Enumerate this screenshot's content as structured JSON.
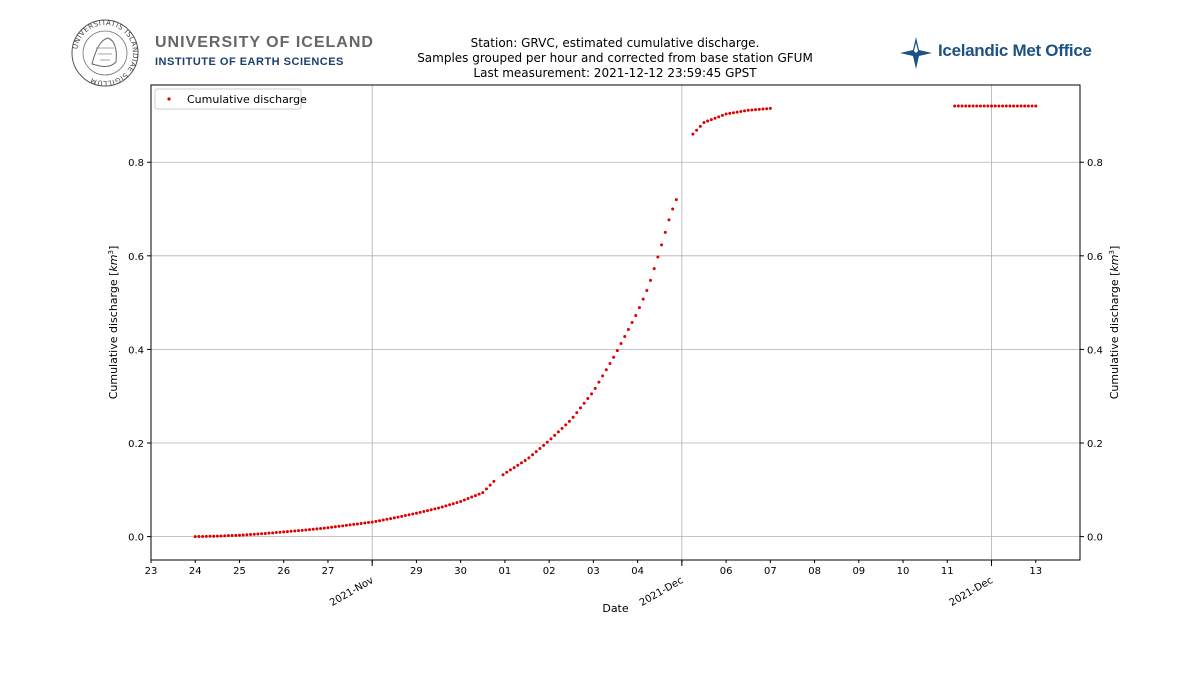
{
  "header": {
    "university_name": "UNIVERSITY OF ICELAND",
    "institute_name": "INSTITUTE OF EARTH SCIENCES",
    "met_office_name": "Icelandic Met Office",
    "seal_text": "UNIVERSITATIS ISLANDIAE SIGILLUM"
  },
  "chart_data": {
    "type": "scatter",
    "title_lines": [
      "Station: GRVC, estimated cumulative discharge.",
      "Samples grouped per hour and corrected from base station GFUM",
      "Last measurement: 2021-12-12 23:59:45 GPST"
    ],
    "xlabel": "Date",
    "ylabel": "Cumulative discharge [km³]",
    "ylabel_parts": {
      "text": "Cumulative discharge [",
      "unit": "km",
      "sup": "3",
      "close": "]"
    },
    "x_axis_type": "date",
    "xlim": [
      "2021-11-23",
      "2021-12-14"
    ],
    "ylim": [
      -0.05,
      0.965
    ],
    "x_ticks": [
      {
        "date": "2021-11-23",
        "label": "23"
      },
      {
        "date": "2021-11-24",
        "label": "24"
      },
      {
        "date": "2021-11-25",
        "label": "25"
      },
      {
        "date": "2021-11-26",
        "label": "26"
      },
      {
        "date": "2021-11-27",
        "label": "27"
      },
      {
        "date": "2021-11-28",
        "label": ""
      },
      {
        "date": "2021-11-29",
        "label": "29"
      },
      {
        "date": "2021-11-30",
        "label": "30"
      },
      {
        "date": "2021-12-01",
        "label": "01"
      },
      {
        "date": "2021-12-02",
        "label": "02"
      },
      {
        "date": "2021-12-03",
        "label": "03"
      },
      {
        "date": "2021-12-04",
        "label": "04"
      },
      {
        "date": "2021-12-05",
        "label": ""
      },
      {
        "date": "2021-12-06",
        "label": "06"
      },
      {
        "date": "2021-12-07",
        "label": "07"
      },
      {
        "date": "2021-12-08",
        "label": "08"
      },
      {
        "date": "2021-12-09",
        "label": "09"
      },
      {
        "date": "2021-12-10",
        "label": "10"
      },
      {
        "date": "2021-12-11",
        "label": "11"
      },
      {
        "date": "2021-12-12",
        "label": ""
      },
      {
        "date": "2021-12-13",
        "label": "13"
      }
    ],
    "major_x_ticks": [
      {
        "date": "2021-11-28",
        "label": "2021-Nov"
      },
      {
        "date": "2021-12-05",
        "label": "2021-Dec"
      },
      {
        "date": "2021-12-12",
        "label": "2021-Dec"
      }
    ],
    "y_ticks": [
      0.0,
      0.2,
      0.4,
      0.6,
      0.8
    ],
    "y_tick_labels": [
      "0.0",
      "0.2",
      "0.4",
      "0.6",
      "0.8"
    ],
    "grid": true,
    "legend_position": "top-left",
    "marker_color": "#e00000",
    "series": [
      {
        "name": "Cumulative discharge",
        "color": "#e00000",
        "points": [
          [
            "2021-11-24T00:00",
            0.0
          ],
          [
            "2021-11-24T12:00",
            0.001
          ],
          [
            "2021-11-25T00:00",
            0.003
          ],
          [
            "2021-11-25T12:00",
            0.006
          ],
          [
            "2021-11-26T00:00",
            0.01
          ],
          [
            "2021-11-26T12:00",
            0.014
          ],
          [
            "2021-11-27T00:00",
            0.019
          ],
          [
            "2021-11-27T12:00",
            0.025
          ],
          [
            "2021-11-28T00:00",
            0.031
          ],
          [
            "2021-11-28T12:00",
            0.04
          ],
          [
            "2021-11-29T00:00",
            0.05
          ],
          [
            "2021-11-29T12:00",
            0.061
          ],
          [
            "2021-11-30T00:00",
            0.075
          ],
          [
            "2021-11-30T12:00",
            0.094
          ],
          [
            "2021-11-30T18:00",
            0.118
          ],
          [
            "2021-12-01T00:00",
            0.135
          ],
          [
            "2021-12-01T12:00",
            0.165
          ],
          [
            "2021-12-02T00:00",
            0.205
          ],
          [
            "2021-12-02T12:00",
            0.25
          ],
          [
            "2021-12-03T00:00",
            0.31
          ],
          [
            "2021-12-03T12:00",
            0.39
          ],
          [
            "2021-12-04T00:00",
            0.48
          ],
          [
            "2021-12-04T06:00",
            0.535
          ],
          [
            "2021-12-04T12:00",
            0.61
          ],
          [
            "2021-12-04T18:00",
            0.69
          ],
          [
            "2021-12-04T21:00",
            0.72
          ],
          [
            "2021-12-05T06:00",
            0.86
          ],
          [
            "2021-12-05T12:00",
            0.885
          ],
          [
            "2021-12-06T00:00",
            0.903
          ],
          [
            "2021-12-06T12:00",
            0.911
          ],
          [
            "2021-12-07T00:00",
            0.915
          ],
          [
            "2021-12-11T04:00",
            0.92
          ],
          [
            "2021-12-13T00:00",
            0.92
          ]
        ],
        "segments": [
          [
            "2021-11-24T00:00",
            "2021-11-30T19:00"
          ],
          [
            "2021-11-30T23:00",
            "2021-12-04T21:00"
          ],
          [
            "2021-12-05T06:00",
            "2021-12-07T01:00"
          ],
          [
            "2021-12-11T04:00",
            "2021-12-13T00:00"
          ]
        ]
      }
    ]
  }
}
